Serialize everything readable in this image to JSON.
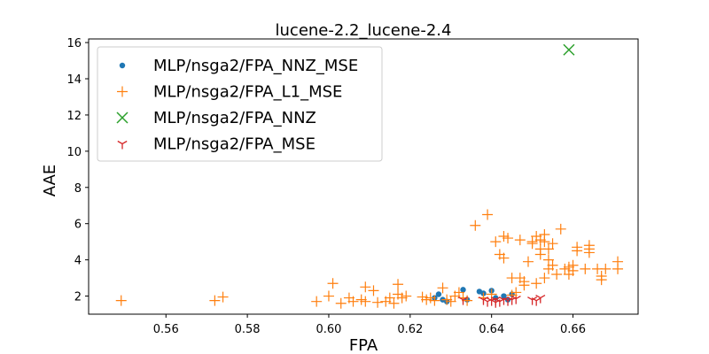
{
  "chart_data": {
    "type": "scatter",
    "title": "lucene-2.2_lucene-2.4",
    "xlabel": "FPA",
    "ylabel": "AAE",
    "xlim": [
      0.541,
      0.676
    ],
    "ylim": [
      1.0,
      16.2
    ],
    "xticks": [
      0.56,
      0.58,
      0.6,
      0.62,
      0.64,
      0.66
    ],
    "xtick_labels": [
      "0.56",
      "0.58",
      "0.60",
      "0.62",
      "0.64",
      "0.66"
    ],
    "yticks": [
      2,
      4,
      6,
      8,
      10,
      12,
      14,
      16
    ],
    "ytick_labels": [
      "2",
      "4",
      "6",
      "8",
      "10",
      "12",
      "14",
      "16"
    ],
    "grid": false,
    "legend_position": "top-left",
    "series": [
      {
        "name": "MLP/nsga2/FPA_NNZ_MSE",
        "color": "#1f77b4",
        "marker": "dot",
        "points": [
          [
            0.626,
            1.9
          ],
          [
            0.627,
            2.1
          ],
          [
            0.628,
            1.8
          ],
          [
            0.629,
            1.7
          ],
          [
            0.633,
            2.35
          ],
          [
            0.634,
            1.8
          ],
          [
            0.637,
            2.25
          ],
          [
            0.638,
            2.15
          ],
          [
            0.64,
            2.3
          ],
          [
            0.641,
            1.9
          ],
          [
            0.643,
            2.0
          ],
          [
            0.644,
            1.8
          ],
          [
            0.645,
            2.1
          ]
        ]
      },
      {
        "name": "MLP/nsga2/FPA_L1_MSE",
        "color": "#ff7f0e",
        "marker": "plus",
        "points": [
          [
            0.549,
            1.75
          ],
          [
            0.572,
            1.75
          ],
          [
            0.574,
            1.95
          ],
          [
            0.597,
            1.7
          ],
          [
            0.6,
            2.0
          ],
          [
            0.601,
            2.7
          ],
          [
            0.603,
            1.6
          ],
          [
            0.605,
            1.9
          ],
          [
            0.606,
            1.7
          ],
          [
            0.608,
            1.8
          ],
          [
            0.609,
            1.7
          ],
          [
            0.609,
            2.5
          ],
          [
            0.611,
            2.3
          ],
          [
            0.612,
            1.65
          ],
          [
            0.614,
            1.7
          ],
          [
            0.615,
            1.9
          ],
          [
            0.616,
            1.6
          ],
          [
            0.617,
            2.65
          ],
          [
            0.617,
            2.1
          ],
          [
            0.618,
            1.9
          ],
          [
            0.619,
            2.0
          ],
          [
            0.623,
            1.95
          ],
          [
            0.624,
            1.8
          ],
          [
            0.625,
            1.9
          ],
          [
            0.626,
            1.75
          ],
          [
            0.628,
            2.45
          ],
          [
            0.629,
            1.8
          ],
          [
            0.63,
            1.7
          ],
          [
            0.631,
            2.0
          ],
          [
            0.632,
            2.2
          ],
          [
            0.633,
            1.9
          ],
          [
            0.634,
            1.75
          ],
          [
            0.636,
            5.9
          ],
          [
            0.638,
            1.9
          ],
          [
            0.639,
            6.5
          ],
          [
            0.64,
            2.1
          ],
          [
            0.641,
            5.0
          ],
          [
            0.642,
            4.3
          ],
          [
            0.643,
            4.1
          ],
          [
            0.643,
            5.3
          ],
          [
            0.644,
            5.2
          ],
          [
            0.645,
            2.05
          ],
          [
            0.645,
            3.0
          ],
          [
            0.646,
            2.2
          ],
          [
            0.647,
            5.1
          ],
          [
            0.647,
            3.0
          ],
          [
            0.648,
            2.8
          ],
          [
            0.648,
            2.6
          ],
          [
            0.649,
            3.9
          ],
          [
            0.65,
            5.0
          ],
          [
            0.65,
            4.9
          ],
          [
            0.651,
            5.3
          ],
          [
            0.651,
            2.7
          ],
          [
            0.652,
            4.6
          ],
          [
            0.652,
            4.3
          ],
          [
            0.652,
            5.1
          ],
          [
            0.653,
            5.4
          ],
          [
            0.653,
            5.0
          ],
          [
            0.653,
            3.0
          ],
          [
            0.654,
            4.6
          ],
          [
            0.654,
            4.0
          ],
          [
            0.654,
            3.5
          ],
          [
            0.655,
            4.9
          ],
          [
            0.655,
            3.7
          ],
          [
            0.656,
            3.2
          ],
          [
            0.657,
            5.7
          ],
          [
            0.658,
            3.5
          ],
          [
            0.659,
            3.6
          ],
          [
            0.659,
            3.2
          ],
          [
            0.66,
            3.7
          ],
          [
            0.66,
            3.4
          ],
          [
            0.661,
            4.7
          ],
          [
            0.661,
            4.5
          ],
          [
            0.663,
            3.5
          ],
          [
            0.664,
            4.8
          ],
          [
            0.664,
            4.6
          ],
          [
            0.664,
            4.4
          ],
          [
            0.666,
            3.5
          ],
          [
            0.667,
            3.1
          ],
          [
            0.667,
            2.9
          ],
          [
            0.668,
            3.5
          ],
          [
            0.671,
            3.9
          ],
          [
            0.671,
            3.5
          ]
        ]
      },
      {
        "name": "MLP/nsga2/FPA_NNZ",
        "color": "#2ca02c",
        "marker": "x",
        "points": [
          [
            0.659,
            15.6
          ]
        ]
      },
      {
        "name": "MLP/nsga2/FPA_MSE",
        "color": "#d62728",
        "marker": "tri",
        "points": [
          [
            0.633,
            1.8
          ],
          [
            0.638,
            1.8
          ],
          [
            0.639,
            1.7
          ],
          [
            0.64,
            1.75
          ],
          [
            0.641,
            1.65
          ],
          [
            0.641,
            1.8
          ],
          [
            0.642,
            1.7
          ],
          [
            0.643,
            1.8
          ],
          [
            0.644,
            1.75
          ],
          [
            0.645,
            1.8
          ],
          [
            0.646,
            1.85
          ],
          [
            0.65,
            1.8
          ],
          [
            0.651,
            1.75
          ],
          [
            0.652,
            1.9
          ]
        ]
      }
    ]
  }
}
